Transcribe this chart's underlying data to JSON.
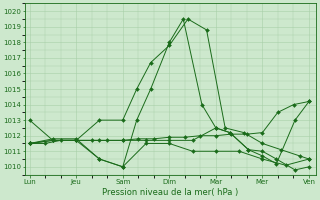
{
  "title": "",
  "xlabel": "Pression niveau de la mer( hPa )",
  "background_color": "#cde8cd",
  "grid_color": "#a8cfa8",
  "line_color": "#1a6b1a",
  "marker_color": "#1a6b1a",
  "ylim": [
    1009.5,
    1020.5
  ],
  "yticks": [
    1010,
    1011,
    1012,
    1013,
    1014,
    1015,
    1016,
    1017,
    1018,
    1019,
    1020
  ],
  "x_labels": [
    "Lun",
    "Jeu",
    "Sam",
    "Dim",
    "Mar",
    "Mer",
    "Ven"
  ],
  "x_day_positions": [
    0,
    1,
    2,
    3,
    4,
    5,
    6
  ],
  "series": [
    {
      "x": [
        0.0,
        0.33,
        0.67,
        1.0,
        1.33,
        1.67,
        2.0,
        2.33,
        2.67,
        3.0,
        3.33,
        3.67,
        4.0,
        4.33,
        4.67,
        5.0,
        5.33,
        5.67,
        6.0
      ],
      "y": [
        1011.5,
        1011.5,
        1011.7,
        1011.7,
        1011.7,
        1011.7,
        1011.7,
        1011.8,
        1011.8,
        1011.9,
        1011.9,
        1012.0,
        1012.0,
        1012.1,
        1012.1,
        1012.2,
        1013.5,
        1014.0,
        1014.2
      ]
    },
    {
      "x": [
        0.0,
        0.5,
        1.0,
        1.5,
        2.0,
        2.5,
        3.0,
        3.5,
        4.0,
        4.5,
        5.0,
        5.5,
        6.0
      ],
      "y": [
        1011.5,
        1011.7,
        1011.7,
        1010.5,
        1010.0,
        1011.5,
        1011.5,
        1011.0,
        1011.0,
        1011.0,
        1010.5,
        1010.1,
        1010.5
      ]
    },
    {
      "x": [
        0.0,
        0.5,
        1.0,
        1.5,
        2.0,
        2.3,
        2.6,
        3.0,
        3.4,
        3.8,
        4.2,
        4.6,
        5.0,
        5.4,
        5.8,
        6.0
      ],
      "y": [
        1011.5,
        1011.7,
        1011.7,
        1013.0,
        1013.0,
        1015.0,
        1016.7,
        1017.8,
        1019.5,
        1018.8,
        1012.5,
        1012.2,
        1011.5,
        1011.1,
        1010.7,
        1010.5
      ]
    },
    {
      "x": [
        0.0,
        0.5,
        1.0,
        1.5,
        2.0,
        2.3,
        2.6,
        3.0,
        3.3,
        3.7,
        4.0,
        4.3,
        4.7,
        5.0,
        5.3,
        5.7,
        6.0
      ],
      "y": [
        1011.5,
        1011.8,
        1011.8,
        1010.5,
        1010.0,
        1013.0,
        1015.0,
        1018.0,
        1019.5,
        1014.0,
        1012.5,
        1012.2,
        1011.1,
        1011.0,
        1010.5,
        1009.8,
        1010.0
      ]
    },
    {
      "x": [
        0.0,
        0.5,
        1.0,
        1.5,
        2.0,
        2.5,
        3.0,
        3.5,
        4.0,
        4.3,
        4.7,
        5.0,
        5.3,
        5.7,
        6.0
      ],
      "y": [
        1013.0,
        1011.7,
        1011.7,
        1011.7,
        1011.7,
        1011.7,
        1011.7,
        1011.7,
        1012.5,
        1012.2,
        1011.1,
        1010.7,
        1010.2,
        1013.0,
        1014.2
      ]
    }
  ]
}
